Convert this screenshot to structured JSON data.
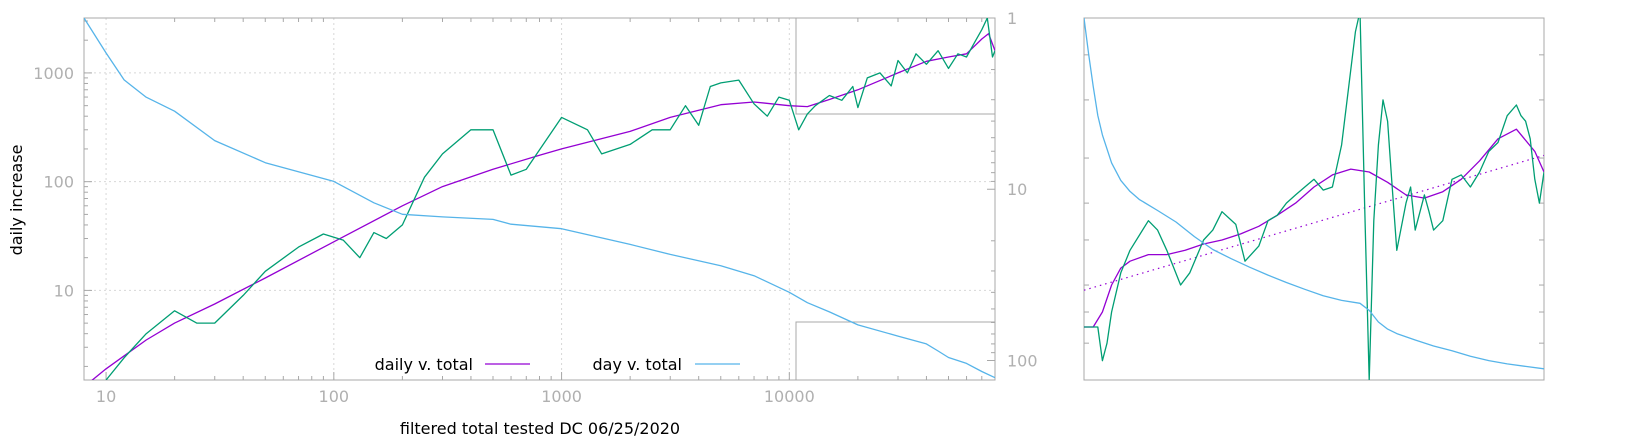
{
  "chart_data": [
    {
      "type": "line",
      "title": "",
      "xlabel": "filtered total tested DC 06/25/2020",
      "ylabel": "daily increase",
      "xscale": "log",
      "yscale": "log",
      "xlim": [
        8,
        80000
      ],
      "ylim": [
        1.5,
        3200
      ],
      "x_ticks": [
        10,
        100,
        1000,
        10000
      ],
      "x_tick_labels": [
        "10",
        "100",
        "1000",
        "10000"
      ],
      "y_ticks": [
        10,
        100,
        1000
      ],
      "y_tick_labels": [
        "10",
        "100",
        "1000"
      ],
      "y2_scale": "log-reversed",
      "y2lim": [
        1,
        130
      ],
      "y2_ticks": [
        1,
        10,
        100
      ],
      "y2_tick_labels": [
        "1",
        "10",
        "100"
      ],
      "grid": true,
      "legend_position": "bottom-center",
      "series": [
        {
          "name": "daily v. total",
          "color": "#9400d3",
          "axis": "left",
          "x": [
            8,
            10,
            15,
            20,
            30,
            50,
            100,
            200,
            300,
            500,
            800,
            1000,
            2000,
            3000,
            5000,
            7000,
            10000,
            12000,
            15000,
            20000,
            30000,
            40000,
            50000,
            60000,
            70000,
            75000,
            80000
          ],
          "y": [
            1.3,
            1.9,
            3.5,
            5.0,
            7.5,
            13,
            28,
            60,
            90,
            130,
            175,
            200,
            290,
            390,
            510,
            540,
            500,
            490,
            570,
            700,
            1000,
            1280,
            1400,
            1500,
            2050,
            2300,
            1600
          ]
        },
        {
          "name": "",
          "color": "#009e73",
          "axis": "left",
          "x": [
            10,
            12,
            15,
            20,
            25,
            30,
            40,
            50,
            70,
            90,
            110,
            130,
            150,
            170,
            200,
            250,
            300,
            400,
            500,
            600,
            700,
            1000,
            1300,
            1500,
            2000,
            2500,
            3000,
            3500,
            4000,
            4500,
            5000,
            6000,
            7000,
            8000,
            9000,
            10000,
            11000,
            12000,
            13000,
            15000,
            17000,
            19000,
            20000,
            22000,
            25000,
            28000,
            30000,
            33000,
            36000,
            40000,
            45000,
            50000,
            55000,
            60000,
            65000,
            70000,
            74000,
            78000,
            80000
          ],
          "y": [
            1.5,
            2.4,
            4.0,
            6.5,
            5.0,
            5.0,
            9.0,
            15,
            25,
            33,
            29,
            20,
            34,
            30,
            40,
            110,
            180,
            300,
            300,
            115,
            130,
            390,
            300,
            180,
            220,
            300,
            300,
            500,
            330,
            750,
            810,
            860,
            520,
            400,
            600,
            560,
            300,
            420,
            500,
            620,
            560,
            750,
            480,
            900,
            1000,
            760,
            1300,
            1000,
            1500,
            1200,
            1600,
            1100,
            1500,
            1400,
            1900,
            2500,
            3200,
            1400,
            1600
          ]
        },
        {
          "name": "day v. total",
          "color": "#56b4e9",
          "axis": "right",
          "x": [
            8,
            10,
            12,
            15,
            20,
            30,
            50,
            100,
            150,
            200,
            300,
            500,
            600,
            1000,
            2000,
            3000,
            5000,
            7000,
            10000,
            12000,
            15000,
            20000,
            30000,
            40000,
            45000,
            50000,
            60000,
            70000,
            80000
          ],
          "y": [
            1.0,
            1.6,
            2.3,
            2.9,
            3.5,
            5.2,
            7.0,
            9.0,
            12.0,
            14.0,
            14.5,
            15.0,
            16.0,
            17.0,
            21.0,
            24.0,
            28.0,
            32.0,
            40.0,
            46.0,
            52.0,
            62.0,
            72.0,
            80.0,
            88.0,
            96.0,
            104.0,
            116.0,
            126.0
          ]
        }
      ]
    },
    {
      "type": "line",
      "title": "",
      "xlabel": "",
      "ylabel": "",
      "yscale": "log",
      "xlim": [
        0,
        100
      ],
      "ylim": [
        0.5,
        3.0
      ],
      "x_ticks": [],
      "y_ticks": [],
      "grid": false,
      "series": [
        {
          "name": "",
          "color": "#9400d3",
          "style": "solid",
          "axis": "left",
          "x": [
            0,
            2,
            4,
            6,
            8,
            10,
            14,
            18,
            22,
            26,
            30,
            34,
            38,
            42,
            46,
            50,
            54,
            58,
            62,
            66,
            70,
            74,
            78,
            82,
            86,
            90,
            94,
            98,
            100
          ],
          "y": [
            0.65,
            0.65,
            0.7,
            0.8,
            0.87,
            0.9,
            0.93,
            0.93,
            0.95,
            0.98,
            1.0,
            1.03,
            1.07,
            1.13,
            1.2,
            1.3,
            1.38,
            1.42,
            1.4,
            1.33,
            1.25,
            1.23,
            1.27,
            1.35,
            1.48,
            1.65,
            1.73,
            1.55,
            1.4
          ]
        },
        {
          "name": "",
          "color": "#9400d3",
          "style": "dotted",
          "axis": "left",
          "x": [
            0,
            100
          ],
          "y": [
            0.78,
            1.52
          ]
        },
        {
          "name": "",
          "color": "#009e73",
          "style": "solid",
          "axis": "left",
          "x": [
            0,
            3,
            4,
            5,
            6,
            8,
            10,
            14,
            16,
            18,
            21,
            23,
            26,
            28,
            30,
            33,
            35,
            38,
            40,
            42,
            44,
            46,
            48,
            50,
            52,
            54,
            56,
            59,
            60,
            61,
            62,
            63,
            64,
            65,
            66,
            67,
            68,
            70,
            71,
            72,
            74,
            75,
            76,
            78,
            80,
            82,
            84,
            86,
            88,
            90,
            92,
            94,
            95,
            96,
            97,
            98,
            99,
            100
          ],
          "y": [
            0.65,
            0.65,
            0.55,
            0.6,
            0.7,
            0.85,
            0.95,
            1.1,
            1.05,
            0.95,
            0.8,
            0.85,
            1.0,
            1.05,
            1.15,
            1.08,
            0.9,
            0.97,
            1.1,
            1.13,
            1.2,
            1.25,
            1.3,
            1.35,
            1.28,
            1.3,
            1.6,
            2.8,
            3.1,
            1.2,
            0.5,
            1.1,
            1.6,
            2.0,
            1.8,
            1.3,
            0.95,
            1.2,
            1.3,
            1.05,
            1.25,
            1.15,
            1.05,
            1.1,
            1.35,
            1.38,
            1.3,
            1.4,
            1.55,
            1.62,
            1.85,
            1.95,
            1.85,
            1.8,
            1.65,
            1.35,
            1.2,
            1.4
          ]
        },
        {
          "name": "",
          "color": "#56b4e9",
          "style": "solid",
          "axis": "right-reversed",
          "x": [
            0,
            1,
            2,
            3,
            4,
            6,
            8,
            10,
            12,
            16,
            20,
            24,
            28,
            32,
            36,
            40,
            44,
            48,
            52,
            56,
            60,
            62,
            64,
            66,
            68,
            72,
            76,
            80,
            84,
            88,
            92,
            96,
            100
          ],
          "y": [
            1.0,
            1.4,
            1.9,
            2.5,
            3.0,
            3.9,
            4.6,
            5.1,
            5.5,
            6.1,
            6.8,
            7.8,
            8.8,
            9.6,
            10.4,
            11.2,
            12.0,
            12.8,
            13.6,
            14.2,
            14.6,
            15.6,
            17.4,
            18.6,
            19.4,
            20.6,
            21.8,
            22.8,
            24.0,
            25.0,
            25.8,
            26.4,
            27.0
          ]
        }
      ]
    }
  ]
}
